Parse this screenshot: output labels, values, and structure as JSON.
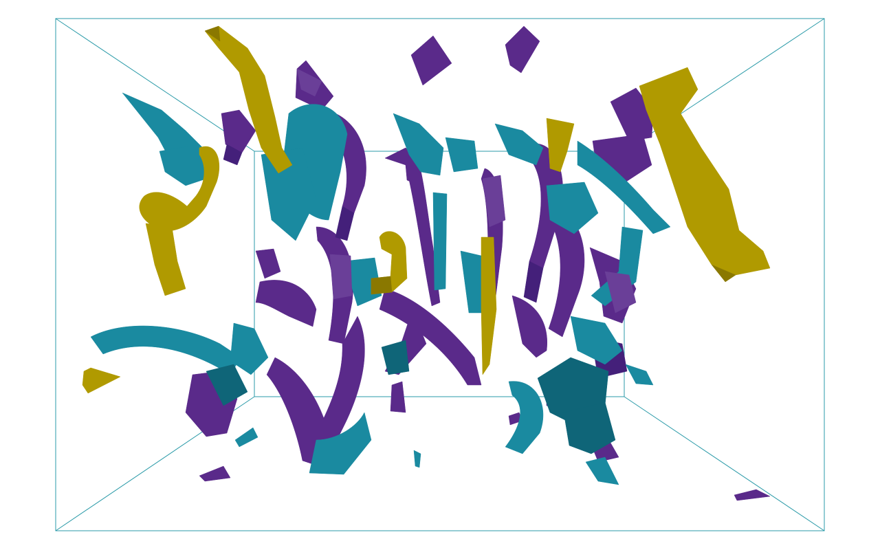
{
  "colors": {
    "background": "#ffffff",
    "frame": "#2a9aa8",
    "gold": "#b09a00",
    "gold_dark": "#8a7800",
    "teal": "#1a8aa0",
    "teal_dark": "#0f6578",
    "purple": "#5a2a8a",
    "purple_dark": "#44207a",
    "purple_light": "#6a3f98"
  },
  "scene": {
    "kind": "3d-bounding-box-with-isosurface-ribbons",
    "series": [
      {
        "name": "",
        "color_key": "gold"
      },
      {
        "name": "",
        "color_key": "teal"
      },
      {
        "name": "",
        "color_key": "purple"
      }
    ]
  }
}
